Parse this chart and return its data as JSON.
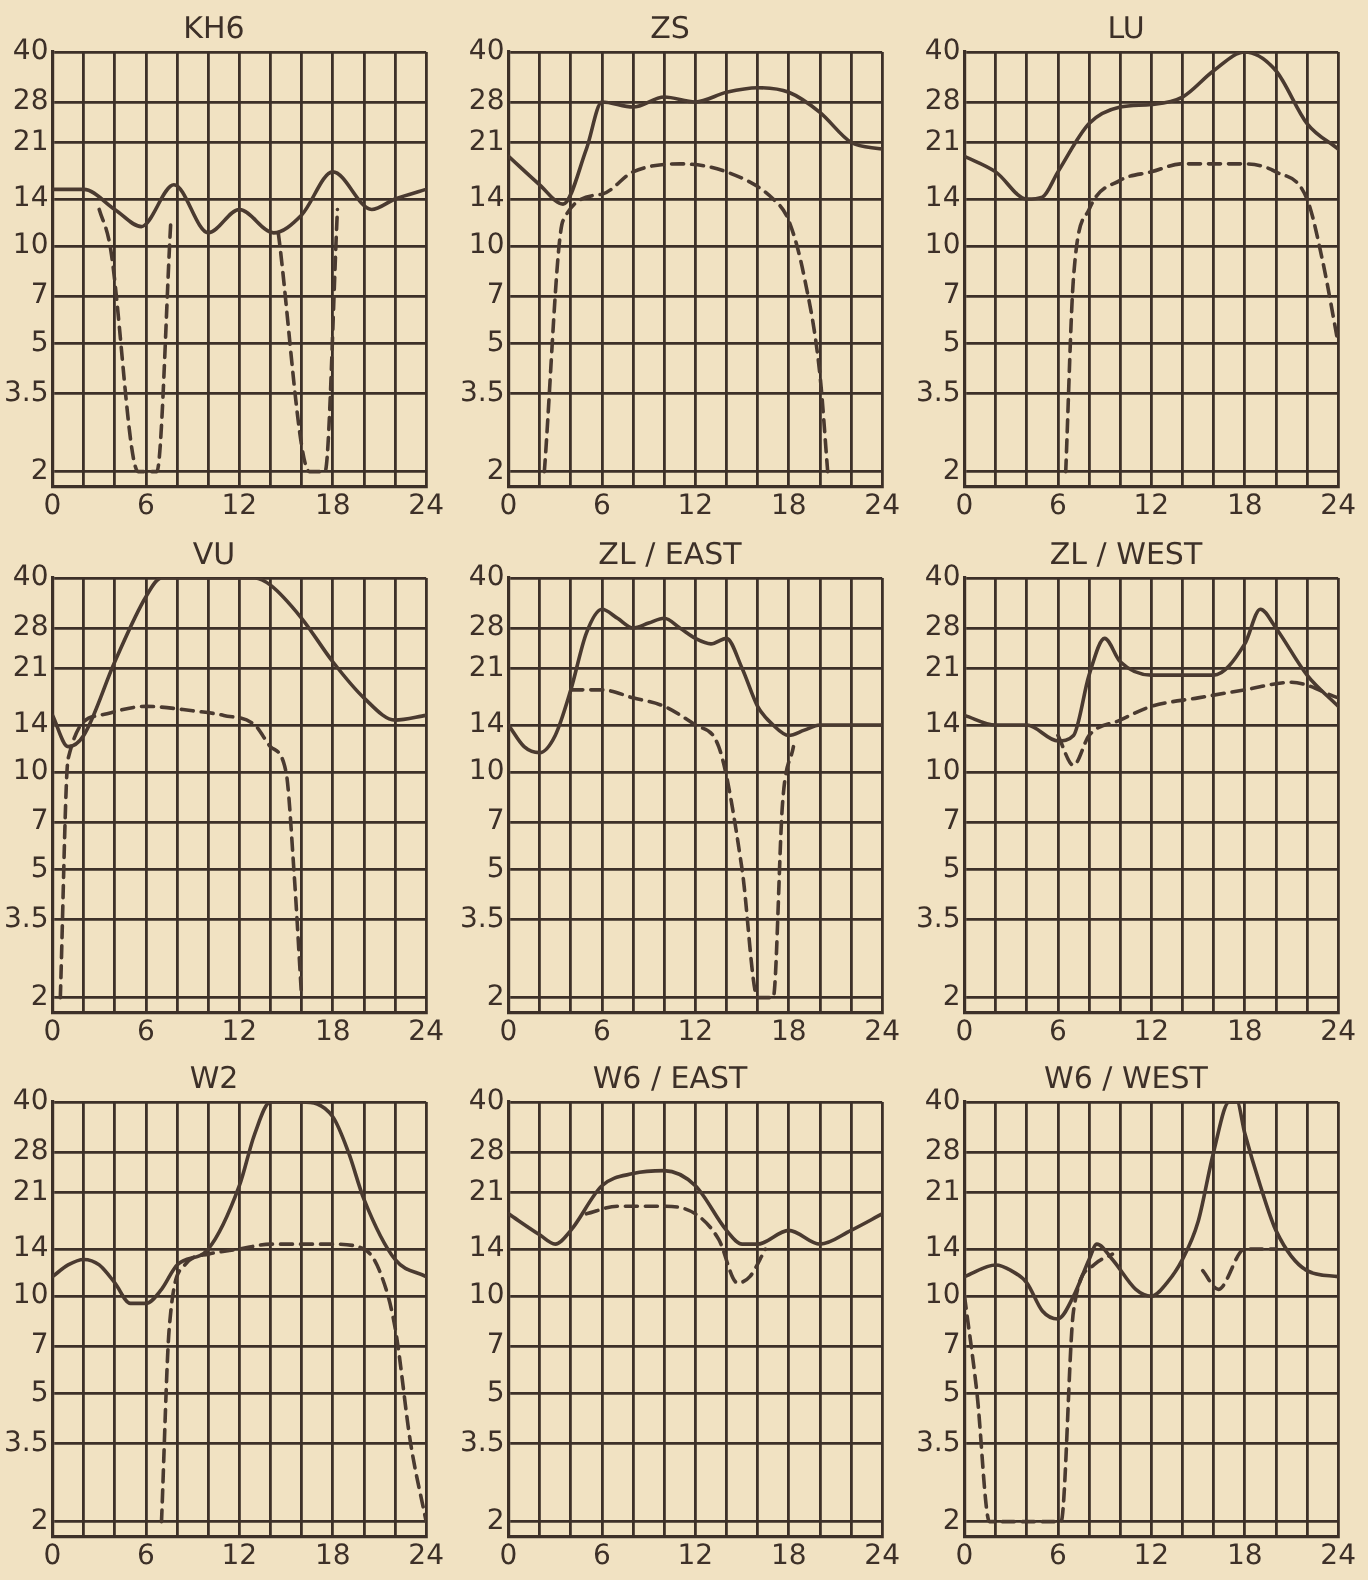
{
  "chart_data": [
    {
      "type": "line",
      "title": "KH6",
      "xlim": [
        0,
        24
      ],
      "ylim": [
        1.8,
        40
      ],
      "log": "y",
      "grid": true,
      "marker": "none",
      "xticks": [
        0,
        {
          "value": 2,
          "label": null
        },
        {
          "value": 4,
          "label": null
        },
        6,
        {
          "value": 8,
          "label": null
        },
        {
          "value": 10,
          "label": null
        },
        12,
        {
          "value": 14,
          "label": null
        },
        {
          "value": 16,
          "label": null
        },
        18,
        {
          "value": 20,
          "label": null
        },
        {
          "value": 22,
          "label": null
        },
        24
      ],
      "yticks": [
        2,
        3.5,
        5,
        7,
        10,
        14,
        21,
        28,
        40
      ],
      "series": [
        {
          "color": "#4a3a30",
          "line_style": "solid",
          "x": [
            0,
            2,
            4,
            5.7,
            7.8,
            10,
            12,
            14.2,
            16,
            18,
            20.5,
            22,
            24
          ],
          "values": [
            15,
            15,
            13,
            11.5,
            15.5,
            11,
            13,
            11,
            12.5,
            17,
            13,
            14,
            15
          ]
        },
        {
          "color": "#4a3a30",
          "line_style": "dashed",
          "x": [
            3,
            3.7,
            5.5,
            6.7,
            7.6,
            11,
            14.5,
            16.5,
            17.5,
            18.3
          ],
          "values": [
            13,
            10,
            2,
            2,
            12,
            null,
            11,
            2,
            2,
            13
          ]
        }
      ]
    },
    {
      "type": "line",
      "title": "ZS",
      "xlim": [
        0,
        24
      ],
      "ylim": [
        1.8,
        40
      ],
      "log": "y",
      "grid": true,
      "marker": "none",
      "xticks": [
        0,
        {
          "value": 2,
          "label": null
        },
        {
          "value": 4,
          "label": null
        },
        6,
        {
          "value": 8,
          "label": null
        },
        {
          "value": 10,
          "label": null
        },
        12,
        {
          "value": 14,
          "label": null
        },
        {
          "value": 16,
          "label": null
        },
        18,
        {
          "value": 20,
          "label": null
        },
        {
          "value": 22,
          "label": null
        },
        24
      ],
      "yticks": [
        2,
        3.5,
        5,
        7,
        10,
        14,
        21,
        28,
        40
      ],
      "series": [
        {
          "color": "#4a3a30",
          "line_style": "solid",
          "x": [
            0,
            2,
            3.5,
            5,
            6,
            8,
            10,
            12,
            14,
            16,
            18,
            20,
            22,
            24
          ],
          "values": [
            19,
            15.5,
            13.5,
            20,
            28,
            27,
            29,
            28,
            30,
            31,
            30,
            26,
            21,
            20
          ]
        },
        {
          "color": "#4a3a30",
          "line_style": "dashed",
          "x": [
            2.3,
            3.5,
            6,
            8,
            11,
            14,
            17,
            18,
            19,
            20,
            20.5
          ],
          "values": [
            2,
            12,
            14.5,
            17,
            18,
            17,
            14,
            12,
            8,
            4,
            2
          ]
        }
      ]
    },
    {
      "type": "line",
      "title": "LU",
      "xlim": [
        0,
        24
      ],
      "ylim": [
        1.8,
        40
      ],
      "log": "y",
      "grid": true,
      "marker": "none",
      "xticks": [
        0,
        {
          "value": 2,
          "label": null
        },
        {
          "value": 4,
          "label": null
        },
        6,
        {
          "value": 8,
          "label": null
        },
        {
          "value": 10,
          "label": null
        },
        12,
        {
          "value": 14,
          "label": null
        },
        {
          "value": 16,
          "label": null
        },
        18,
        {
          "value": 20,
          "label": null
        },
        {
          "value": 22,
          "label": null
        },
        24
      ],
      "yticks": [
        2,
        3.5,
        5,
        7,
        10,
        14,
        21,
        28,
        40
      ],
      "series": [
        {
          "color": "#4a3a30",
          "line_style": "solid",
          "x": [
            0,
            2,
            4,
            5,
            6,
            8,
            10,
            12,
            14,
            16,
            18,
            20,
            22,
            24
          ],
          "values": [
            19,
            17,
            14,
            14.2,
            17,
            24,
            27,
            27.5,
            29,
            35,
            40,
            35,
            24,
            20
          ]
        },
        {
          "color": "#4a3a30",
          "line_style": "dashed",
          "x": [
            6.5,
            7,
            8,
            10,
            12,
            14,
            16,
            18,
            20,
            22,
            23,
            24
          ],
          "values": [
            2,
            8,
            13,
            16,
            17,
            18,
            18,
            18,
            17,
            14,
            9,
            5
          ]
        }
      ]
    },
    {
      "type": "line",
      "title": "VU",
      "xlim": [
        0,
        24
      ],
      "ylim": [
        1.8,
        40
      ],
      "log": "y",
      "grid": true,
      "marker": "none",
      "xticks": [
        0,
        {
          "value": 2,
          "label": null
        },
        {
          "value": 4,
          "label": null
        },
        6,
        {
          "value": 8,
          "label": null
        },
        {
          "value": 10,
          "label": null
        },
        12,
        {
          "value": 14,
          "label": null
        },
        {
          "value": 16,
          "label": null
        },
        18,
        {
          "value": 20,
          "label": null
        },
        {
          "value": 22,
          "label": null
        },
        24
      ],
      "yticks": [
        2,
        3.5,
        5,
        7,
        10,
        14,
        21,
        28,
        40
      ],
      "series": [
        {
          "color": "#4a3a30",
          "line_style": "solid",
          "x": [
            0,
            1,
            2,
            4,
            6,
            7,
            10,
            13,
            14,
            16,
            18,
            20,
            22,
            24
          ],
          "values": [
            15,
            12,
            13,
            22,
            35,
            40,
            40,
            40,
            38,
            30,
            22,
            17,
            14.5,
            15
          ]
        },
        {
          "color": "#4a3a30",
          "line_style": "dashed",
          "x": [
            0.5,
            1,
            3,
            6,
            9,
            11,
            13,
            14,
            15,
            15.5,
            16
          ],
          "values": [
            2,
            11,
            15,
            16,
            15.5,
            15,
            14,
            12,
            10,
            5,
            2
          ]
        }
      ]
    },
    {
      "type": "line",
      "title": "ZL / EAST",
      "xlim": [
        0,
        24
      ],
      "ylim": [
        1.8,
        40
      ],
      "log": "y",
      "grid": true,
      "marker": "none",
      "xticks": [
        0,
        {
          "value": 2,
          "label": null
        },
        {
          "value": 4,
          "label": null
        },
        6,
        {
          "value": 8,
          "label": null
        },
        {
          "value": 10,
          "label": null
        },
        12,
        {
          "value": 14,
          "label": null
        },
        {
          "value": 16,
          "label": null
        },
        18,
        {
          "value": 20,
          "label": null
        },
        {
          "value": 22,
          "label": null
        },
        24
      ],
      "yticks": [
        2,
        3.5,
        5,
        7,
        10,
        14,
        21,
        28,
        40
      ],
      "series": [
        {
          "color": "#4a3a30",
          "line_style": "solid",
          "x": [
            0,
            1,
            2,
            3,
            4,
            5,
            6,
            7,
            8,
            9,
            10,
            11,
            12,
            13,
            14,
            15,
            16,
            17,
            18,
            19,
            20,
            22,
            24
          ],
          "values": [
            14,
            12,
            11.5,
            13,
            18,
            27,
            32,
            30,
            28,
            29,
            30,
            28,
            26,
            25,
            26,
            21,
            16,
            14,
            13,
            13.5,
            14,
            14,
            14
          ]
        },
        {
          "color": "#4a3a30",
          "line_style": "dashed",
          "x": [
            4,
            6,
            8,
            10,
            12,
            13.5,
            15,
            16,
            17,
            17.6,
            18.3
          ],
          "values": [
            18,
            18,
            17,
            16,
            14,
            12,
            5,
            2,
            2,
            8,
            12
          ]
        }
      ]
    },
    {
      "type": "line",
      "title": "ZL / WEST",
      "xlim": [
        0,
        24
      ],
      "ylim": [
        1.8,
        40
      ],
      "log": "y",
      "grid": true,
      "marker": "none",
      "xticks": [
        0,
        {
          "value": 2,
          "label": null
        },
        {
          "value": 4,
          "label": null
        },
        6,
        {
          "value": 8,
          "label": null
        },
        {
          "value": 10,
          "label": null
        },
        12,
        {
          "value": 14,
          "label": null
        },
        {
          "value": 16,
          "label": null
        },
        18,
        {
          "value": 20,
          "label": null
        },
        {
          "value": 22,
          "label": null
        },
        24
      ],
      "yticks": [
        2,
        3.5,
        5,
        7,
        10,
        14,
        21,
        28,
        40
      ],
      "series": [
        {
          "color": "#4a3a30",
          "line_style": "solid",
          "x": [
            0,
            2,
            4,
            6,
            7,
            8,
            9,
            10,
            12,
            14,
            16,
            18,
            19,
            20,
            22,
            24
          ],
          "values": [
            15,
            14,
            14,
            12.5,
            13,
            20,
            26,
            22,
            20,
            20,
            20,
            25,
            32,
            28,
            20,
            16
          ]
        },
        {
          "color": "#4a3a30",
          "line_style": "dashed",
          "x": [
            6,
            7,
            8,
            10,
            12,
            15,
            18,
            21,
            24
          ],
          "values": [
            13,
            10.5,
            13,
            14.5,
            16,
            17,
            18,
            19,
            17
          ]
        }
      ]
    },
    {
      "type": "line",
      "title": "W2",
      "xlim": [
        0,
        24
      ],
      "ylim": [
        1.8,
        40
      ],
      "log": "y",
      "grid": true,
      "marker": "none",
      "xticks": [
        0,
        {
          "value": 2,
          "label": null
        },
        {
          "value": 4,
          "label": null
        },
        6,
        {
          "value": 8,
          "label": null
        },
        {
          "value": 10,
          "label": null
        },
        12,
        {
          "value": 14,
          "label": null
        },
        {
          "value": 16,
          "label": null
        },
        18,
        {
          "value": 20,
          "label": null
        },
        {
          "value": 22,
          "label": null
        },
        24
      ],
      "yticks": [
        2,
        3.5,
        5,
        7,
        10,
        14,
        21,
        28,
        40
      ],
      "series": [
        {
          "color": "#4a3a30",
          "line_style": "solid",
          "x": [
            0,
            1,
            2,
            3,
            4,
            5,
            6,
            7,
            8,
            10,
            12,
            13,
            14,
            16,
            18,
            19,
            20,
            22,
            24
          ],
          "values": [
            11.5,
            12.5,
            13,
            12.5,
            11,
            9.5,
            9.5,
            10.5,
            12.5,
            14,
            22,
            32,
            40,
            40,
            36,
            28,
            20,
            13,
            11.5
          ]
        },
        {
          "color": "#4a3a30",
          "line_style": "dashed",
          "x": [
            7,
            7.5,
            8.5,
            10,
            12,
            14,
            16,
            18,
            20,
            21,
            22,
            23,
            24
          ],
          "values": [
            2,
            8,
            12.5,
            13.5,
            14,
            14.5,
            14.5,
            14.5,
            14,
            12,
            8,
            3.5,
            2
          ]
        }
      ]
    },
    {
      "type": "line",
      "title": "W6 / EAST",
      "xlim": [
        0,
        24
      ],
      "ylim": [
        1.8,
        40
      ],
      "log": "y",
      "grid": true,
      "marker": "none",
      "xticks": [
        0,
        {
          "value": 2,
          "label": null
        },
        {
          "value": 4,
          "label": null
        },
        6,
        {
          "value": 8,
          "label": null
        },
        {
          "value": 10,
          "label": null
        },
        12,
        {
          "value": 14,
          "label": null
        },
        {
          "value": 16,
          "label": null
        },
        18,
        {
          "value": 20,
          "label": null
        },
        {
          "value": 22,
          "label": null
        },
        24
      ],
      "yticks": [
        2,
        3.5,
        5,
        7,
        10,
        14,
        21,
        28,
        40
      ],
      "series": [
        {
          "color": "#4a3a30",
          "line_style": "solid",
          "x": [
            0,
            2,
            3,
            4,
            6,
            8,
            10,
            12,
            14,
            15,
            16,
            18,
            20,
            22,
            24
          ],
          "values": [
            18,
            15.5,
            14.5,
            16,
            22,
            24,
            24.5,
            22,
            16,
            14.5,
            14.5,
            16,
            14.5,
            16,
            18
          ]
        },
        {
          "color": "#4a3a30",
          "line_style": "dashed",
          "x": [
            5,
            7,
            10,
            12,
            13.5,
            14.7,
            15.5,
            16.5
          ],
          "values": [
            18,
            19,
            19,
            18,
            15,
            11,
            11.5,
            14
          ]
        }
      ]
    },
    {
      "type": "line",
      "title": "W6 / WEST",
      "xlim": [
        0,
        24
      ],
      "ylim": [
        1.8,
        40
      ],
      "log": "y",
      "grid": true,
      "marker": "none",
      "xticks": [
        0,
        {
          "value": 2,
          "label": null
        },
        {
          "value": 4,
          "label": null
        },
        6,
        {
          "value": 8,
          "label": null
        },
        {
          "value": 10,
          "label": null
        },
        12,
        {
          "value": 14,
          "label": null
        },
        {
          "value": 16,
          "label": null
        },
        18,
        {
          "value": 20,
          "label": null
        },
        {
          "value": 22,
          "label": null
        },
        24
      ],
      "yticks": [
        2,
        3.5,
        5,
        7,
        10,
        14,
        21,
        28,
        40
      ],
      "series": [
        {
          "color": "#4a3a30",
          "line_style": "solid",
          "x": [
            0,
            2,
            3,
            4,
            5,
            6,
            7,
            8,
            8.5,
            9.5,
            11,
            12,
            13,
            14,
            15,
            16,
            17,
            17.5,
            18,
            19,
            20,
            22,
            24
          ],
          "values": [
            11.5,
            12.5,
            12,
            11,
            9,
            8.5,
            10,
            13,
            14.5,
            13,
            10.5,
            10,
            11,
            13,
            17,
            28,
            40,
            40,
            32,
            22,
            16,
            12,
            11.5
          ]
        },
        {
          "color": "#4a3a30",
          "line_style": "dashed",
          "x": [
            0,
            0.8,
            1.6,
            6.2,
            7,
            8.3,
            9.5,
            12,
            15.3,
            16.3,
            18,
            20
          ],
          "values": [
            10,
            5,
            2,
            2,
            9,
            12.5,
            13.5,
            null,
            12,
            10.5,
            14,
            14
          ]
        }
      ]
    }
  ]
}
